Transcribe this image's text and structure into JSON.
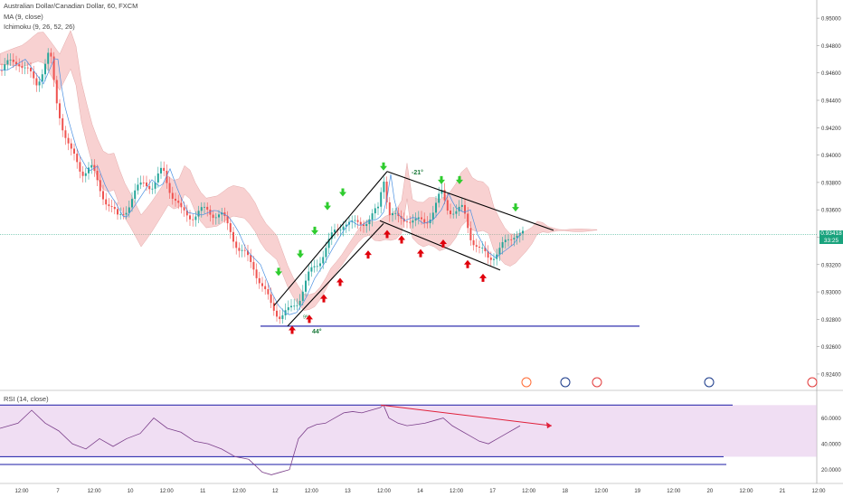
{
  "header": {
    "title": "Australian Dollar/Canadian Dollar, 60, FXCM",
    "ma_label": "MA (9, close)",
    "ichimoku_label": "Ichimoku (9, 26, 52, 26)",
    "rsi_label": "RSI (14, close)"
  },
  "last_price": {
    "value": "0.93418",
    "countdown": "33:25"
  },
  "colors": {
    "up_candle": "#26a69a",
    "down_candle": "#ef5350",
    "kumo_bull": "#a5d6a7",
    "kumo_bear": "#ef9a9a",
    "trend_lines": "#000000",
    "support_line": "#1a1aa6",
    "rsi_line": "#7b3f8a",
    "rsi_band": "#e1bee7",
    "up_arrow": "#e0000b",
    "down_arrow": "#2ecc2e"
  },
  "annotations": {
    "angle_down": "-21°",
    "angle_up": "44°",
    "small_label": "9%"
  },
  "chart_data": [
    {
      "type": "candlestick",
      "series_label": "Australian Dollar/Canadian Dollar",
      "price_axis_ticks": [
        "0.95000",
        "0.94800",
        "0.94600",
        "0.94400",
        "0.94200",
        "0.94000",
        "0.93800",
        "0.93600",
        "0.93400",
        "0.93200",
        "0.93000",
        "0.92800",
        "0.92600",
        "0.92400"
      ],
      "ylim": [
        0.9236,
        0.9508
      ],
      "x_labels": [
        "12:00",
        "7",
        "12:00",
        "10",
        "12:00",
        "11",
        "12:00",
        "12",
        "12:00",
        "13",
        "12:00",
        "14",
        "12:00",
        "17",
        "12:00",
        "18",
        "12:00",
        "19",
        "12:00",
        "20",
        "12:00",
        "21",
        "12:00"
      ],
      "close_path": [
        [
          0,
          0.9462
        ],
        [
          20,
          0.947
        ],
        [
          40,
          0.9452
        ],
        [
          55,
          0.9475
        ],
        [
          62,
          0.944
        ],
        [
          70,
          0.942
        ],
        [
          78,
          0.9402
        ],
        [
          90,
          0.9388
        ],
        [
          100,
          0.9392
        ],
        [
          110,
          0.9375
        ],
        [
          120,
          0.9365
        ],
        [
          130,
          0.9353
        ],
        [
          140,
          0.9362
        ],
        [
          150,
          0.9372
        ],
        [
          160,
          0.9382
        ],
        [
          170,
          0.9376
        ],
        [
          180,
          0.939
        ],
        [
          190,
          0.9372
        ],
        [
          200,
          0.9358
        ],
        [
          215,
          0.9356
        ],
        [
          230,
          0.936
        ],
        [
          245,
          0.9355
        ],
        [
          255,
          0.9345
        ],
        [
          265,
          0.933
        ],
        [
          280,
          0.932
        ],
        [
          292,
          0.93
        ],
        [
          300,
          0.929
        ],
        [
          310,
          0.9283
        ],
        [
          320,
          0.9285
        ],
        [
          330,
          0.9295
        ],
        [
          340,
          0.931
        ],
        [
          350,
          0.932
        ],
        [
          360,
          0.9332
        ],
        [
          370,
          0.9343
        ],
        [
          380,
          0.9352
        ],
        [
          390,
          0.9348
        ],
        [
          400,
          0.9352
        ],
        [
          410,
          0.9353
        ],
        [
          418,
          0.936
        ],
        [
          424,
          0.9386
        ],
        [
          430,
          0.9358
        ],
        [
          440,
          0.9352
        ],
        [
          450,
          0.9355
        ],
        [
          460,
          0.935
        ],
        [
          470,
          0.9352
        ],
        [
          480,
          0.936
        ],
        [
          488,
          0.9372
        ],
        [
          495,
          0.9362
        ],
        [
          505,
          0.9358
        ],
        [
          512,
          0.936
        ],
        [
          520,
          0.9342
        ],
        [
          530,
          0.933
        ],
        [
          540,
          0.9325
        ],
        [
          550,
          0.933
        ],
        [
          560,
          0.9335
        ],
        [
          570,
          0.9345
        ],
        [
          578,
          0.9342
        ]
      ],
      "support_level": 0.9275,
      "rising_channel": {
        "lower": [
          [
            318,
            0.9275
          ],
          [
            424,
            0.935
          ]
        ],
        "upper": [
          [
            303,
            0.929
          ],
          [
            428,
            0.9388
          ]
        ]
      },
      "falling_channel": {
        "upper": [
          [
            428,
            0.9388
          ],
          [
            612,
            0.9345
          ]
        ],
        "lower": [
          [
            420,
            0.9352
          ],
          [
            553,
            0.9316
          ]
        ]
      },
      "signal_arrows_up": [
        [
          323,
          0.9272
        ],
        [
          342,
          0.928
        ],
        [
          358,
          0.9295
        ],
        [
          376,
          0.9307
        ],
        [
          407,
          0.9327
        ],
        [
          428,
          0.9342
        ],
        [
          444,
          0.9338
        ],
        [
          465,
          0.9328
        ],
        [
          490,
          0.9335
        ],
        [
          517,
          0.932
        ],
        [
          534,
          0.931
        ]
      ],
      "signal_arrows_down": [
        [
          308,
          0.9315
        ],
        [
          332,
          0.9328
        ],
        [
          348,
          0.9345
        ],
        [
          362,
          0.9363
        ],
        [
          379,
          0.9373
        ],
        [
          424,
          0.9392
        ],
        [
          488,
          0.9382
        ],
        [
          508,
          0.9382
        ],
        [
          570,
          0.9362
        ]
      ]
    },
    {
      "type": "line",
      "title": "RSI (14, close)",
      "y_ticks": [
        "60.0000",
        "40.0000",
        "20.0000"
      ],
      "ylim": [
        10,
        80
      ],
      "band": [
        30,
        70
      ],
      "divergence_line": [
        [
          421,
          70
        ],
        [
          610,
          54
        ]
      ],
      "guide_lines": [
        [
          0,
          810,
          70
        ],
        [
          0,
          800,
          30
        ],
        [
          0,
          803,
          24
        ]
      ],
      "values": [
        [
          0,
          52
        ],
        [
          20,
          56
        ],
        [
          35,
          66
        ],
        [
          50,
          56
        ],
        [
          65,
          50
        ],
        [
          80,
          40
        ],
        [
          95,
          36
        ],
        [
          110,
          44
        ],
        [
          125,
          38
        ],
        [
          140,
          44
        ],
        [
          155,
          48
        ],
        [
          170,
          60
        ],
        [
          185,
          52
        ],
        [
          200,
          49
        ],
        [
          215,
          42
        ],
        [
          230,
          40
        ],
        [
          245,
          36
        ],
        [
          260,
          30
        ],
        [
          275,
          28
        ],
        [
          290,
          18
        ],
        [
          300,
          16
        ],
        [
          310,
          18
        ],
        [
          320,
          20
        ],
        [
          330,
          44
        ],
        [
          340,
          52
        ],
        [
          350,
          55
        ],
        [
          360,
          56
        ],
        [
          370,
          60
        ],
        [
          380,
          64
        ],
        [
          390,
          65
        ],
        [
          400,
          64
        ],
        [
          410,
          66
        ],
        [
          420,
          68
        ],
        [
          424,
          70
        ],
        [
          430,
          60
        ],
        [
          440,
          56
        ],
        [
          450,
          54
        ],
        [
          460,
          55
        ],
        [
          470,
          56
        ],
        [
          480,
          58
        ],
        [
          490,
          60
        ],
        [
          500,
          54
        ],
        [
          510,
          50
        ],
        [
          520,
          46
        ],
        [
          530,
          42
        ],
        [
          540,
          40
        ],
        [
          550,
          44
        ],
        [
          560,
          48
        ],
        [
          570,
          52
        ],
        [
          575,
          54
        ]
      ]
    }
  ]
}
